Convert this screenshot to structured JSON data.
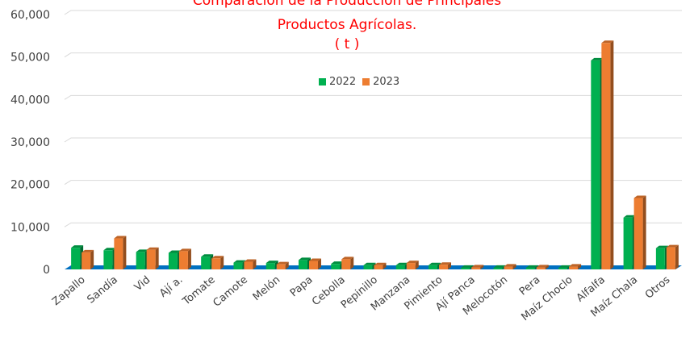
{
  "chart_data": {
    "type": "bar",
    "title_lines": [
      "Comparación de la Producción de Principales",
      "Productos Agrícolas.",
      "( t )"
    ],
    "categories": [
      "Zapallo",
      "Sandía",
      "Vid",
      "Ají a.",
      "Tomate",
      "Camote",
      "Melón",
      "Papa",
      "Cebolla",
      "Pepinillo",
      "Manzana",
      "Pimiento",
      "Ají Panca",
      "Melocotón",
      "Pera",
      "Maíz Choclo",
      "Alfalfa",
      "Maíz Chala",
      "Otros"
    ],
    "series": [
      {
        "name": "2022",
        "color": "#00b050",
        "values": [
          5100,
          4500,
          4100,
          3900,
          3000,
          1600,
          1500,
          2200,
          1300,
          1000,
          1000,
          1000,
          400,
          400,
          400,
          400,
          49200,
          12200,
          5000
        ]
      },
      {
        "name": "2023",
        "color": "#ed7d31",
        "values": [
          4000,
          7300,
          4600,
          4300,
          2600,
          1800,
          1200,
          2000,
          2400,
          1000,
          1500,
          1100,
          500,
          700,
          500,
          700,
          53300,
          16800,
          5200
        ]
      }
    ],
    "ylim": [
      0,
      60000
    ],
    "yticks": [
      "0",
      "10,000",
      "20,000",
      "30,000",
      "40,000",
      "50,000",
      "60,000"
    ],
    "grid": true,
    "legend_position": "top-center"
  }
}
